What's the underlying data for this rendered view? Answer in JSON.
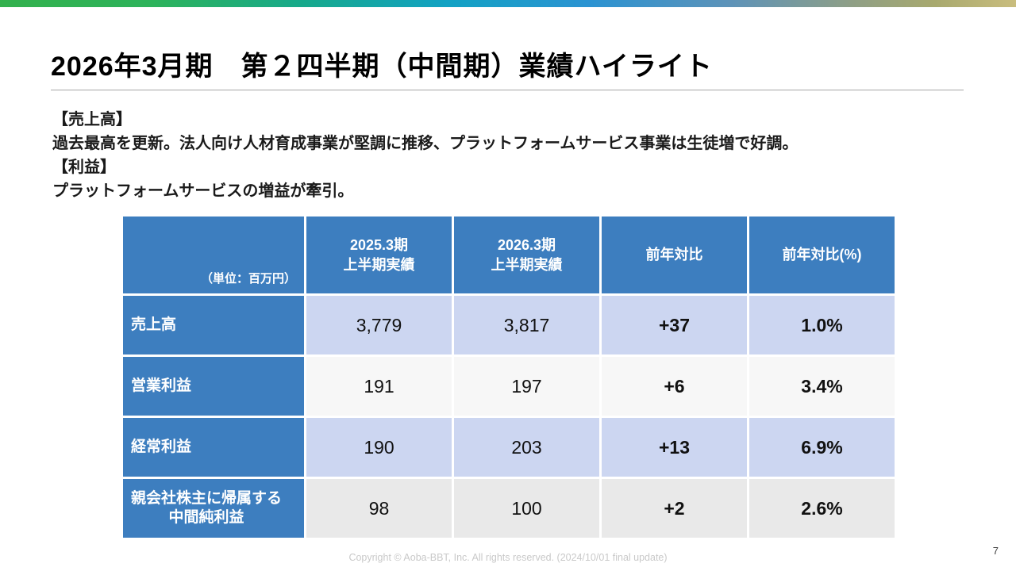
{
  "slide": {
    "title": "2026年3月期　第２四半期（中間期）業績ハイライト",
    "body_lines": [
      "【売上高】",
      "過去最高を更新。法人向け人材育成事業が堅調に推移、プラットフォームサービス事業は生徒増で好調。",
      "【利益】",
      "プラットフォームサービスの増益が牽引。"
    ],
    "footer": "Copyright © Aoba-BBT, Inc.  All rights reserved. (2024/10/01 final update)",
    "page_number": "7"
  },
  "table": {
    "unit_label": "（単位：百万円）",
    "columns": [
      "2025.3期\n上半期実績",
      "2026.3期\n上半期実績",
      "前年対比",
      "前年対比(%)"
    ],
    "rows": [
      {
        "label": "売上高",
        "values": [
          "3,779",
          "3,817",
          "+37",
          "1.0%"
        ]
      },
      {
        "label": "営業利益",
        "values": [
          "191",
          "197",
          "+6",
          "3.4%"
        ]
      },
      {
        "label": "経常利益",
        "values": [
          "190",
          "203",
          "+13",
          "6.9%"
        ]
      },
      {
        "label": "親会社株主に帰属する\n中間純利益",
        "values": [
          "98",
          "100",
          "+2",
          "2.6%"
        ]
      }
    ]
  },
  "colors": {
    "header_blue": "#3d7ebf",
    "row_alt_blue": "#ccd6f1",
    "row_alt_white": "#f7f7f7",
    "row_alt_gray": "#e9e9e9",
    "top_bar_gradient": [
      "#33b14d",
      "#16a98c",
      "#2b93d2",
      "#8f9f85",
      "#c9bd7e"
    ]
  }
}
